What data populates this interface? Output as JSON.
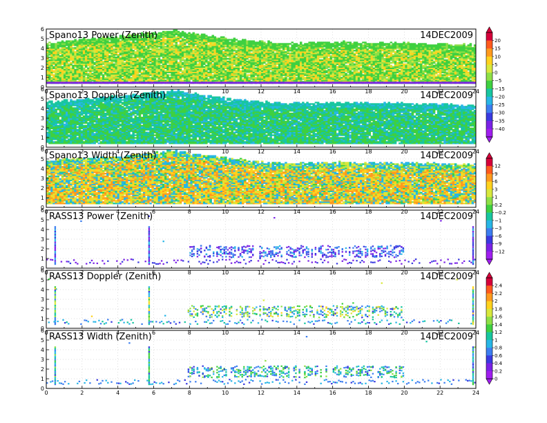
{
  "chart_data": [
    {
      "type": "heatmap",
      "title": "Spano13 Power (Zenith)",
      "date": "14DEC2009",
      "x_ticks": [
        "0",
        "2",
        "4",
        "6",
        "8",
        "10",
        "12",
        "14",
        "16",
        "18",
        "20",
        "22",
        "24"
      ],
      "y_ticks": [
        "0",
        "1",
        "2",
        "3",
        "4",
        "5",
        "6"
      ],
      "xlim": [
        0,
        24
      ],
      "ylim": [
        0,
        6
      ],
      "colorbar": "power",
      "pattern": "dense",
      "value_range": [
        -15,
        10
      ],
      "coverage_top_km": [
        [
          0,
          4.6
        ],
        [
          4,
          5.2
        ],
        [
          7,
          5.8
        ],
        [
          10,
          5.0
        ],
        [
          13,
          4.5
        ],
        [
          16,
          4.6
        ],
        [
          20,
          4.5
        ],
        [
          24,
          4.3
        ]
      ]
    },
    {
      "type": "heatmap",
      "title": "Spano13 Doppler (Zenith)",
      "date": "14DEC2009",
      "x_ticks": [
        "0",
        "2",
        "4",
        "6",
        "8",
        "10",
        "12",
        "14",
        "16",
        "18",
        "20",
        "22",
        "24"
      ],
      "y_ticks": [
        "0",
        "1",
        "2",
        "3",
        "4",
        "5",
        "6"
      ],
      "xlim": [
        0,
        24
      ],
      "ylim": [
        0,
        6
      ],
      "colorbar": "power",
      "pattern": "dense",
      "value_range": [
        -22,
        -8
      ],
      "coverage_top_km": [
        [
          0,
          4.6
        ],
        [
          4,
          5.2
        ],
        [
          7,
          5.8
        ],
        [
          10,
          5.0
        ],
        [
          13,
          4.5
        ],
        [
          16,
          4.6
        ],
        [
          20,
          4.5
        ],
        [
          24,
          4.3
        ]
      ]
    },
    {
      "type": "heatmap",
      "title": "Spano13 Width (Zenith)",
      "date": "14DEC2009",
      "x_ticks": [
        "0",
        "2",
        "4",
        "6",
        "8",
        "10",
        "12",
        "14",
        "16",
        "18",
        "20",
        "22",
        "24"
      ],
      "y_ticks": [
        "0",
        "1",
        "2",
        "3",
        "4",
        "5",
        "6"
      ],
      "xlim": [
        0,
        24
      ],
      "ylim": [
        0,
        6
      ],
      "colorbar": "width",
      "pattern": "dense",
      "value_range": [
        -3,
        9
      ],
      "coverage_top_km": [
        [
          0,
          4.8
        ],
        [
          4,
          5.2
        ],
        [
          7,
          5.8
        ],
        [
          10,
          5.0
        ],
        [
          13,
          4.5
        ],
        [
          16,
          4.6
        ],
        [
          20,
          4.5
        ],
        [
          24,
          4.4
        ]
      ]
    },
    {
      "type": "heatmap",
      "title": "RASS13 Power (Zenith)",
      "date": "14DEC2009",
      "x_ticks": [
        "0",
        "2",
        "4",
        "6",
        "8",
        "10",
        "12",
        "14",
        "16",
        "18",
        "20",
        "22",
        "24"
      ],
      "y_ticks": [
        "0",
        "1",
        "2",
        "3",
        "4",
        "5",
        "6"
      ],
      "xlim": [
        0,
        24
      ],
      "ylim": [
        0,
        6
      ],
      "colorbar": "width",
      "pattern": "sparse",
      "value_range": [
        -12,
        -1
      ]
    },
    {
      "type": "heatmap",
      "title": "RASS13 Doppler (Zenith)",
      "date": "14DEC2009",
      "x_ticks": [
        "0",
        "2",
        "4",
        "6",
        "8",
        "10",
        "12",
        "14",
        "16",
        "18",
        "20",
        "22",
        "24"
      ],
      "y_ticks": [
        "0",
        "1",
        "2",
        "3",
        "4",
        "5",
        "6"
      ],
      "xlim": [
        0,
        24
      ],
      "ylim": [
        0,
        6
      ],
      "colorbar": "rass",
      "pattern": "sparse",
      "value_range": [
        0.4,
        1.8
      ]
    },
    {
      "type": "heatmap",
      "title": "RASS13 Width (Zenith)",
      "date": "14DEC2009",
      "x_ticks": [
        "0",
        "2",
        "4",
        "6",
        "8",
        "10",
        "12",
        "14",
        "16",
        "18",
        "20",
        "22",
        "24"
      ],
      "y_ticks": [
        "0",
        "1",
        "2",
        "3",
        "4",
        "5",
        "6"
      ],
      "xlim": [
        0,
        24
      ],
      "ylim": [
        0,
        6
      ],
      "colorbar": "rass",
      "pattern": "sparse",
      "value_range": [
        0.4,
        1.4
      ]
    }
  ],
  "colorbars": {
    "power": {
      "labels": [
        "20",
        "15",
        "10",
        "5",
        "0",
        "−5",
        "−15",
        "−20",
        "−25",
        "−30",
        "−35",
        "−40"
      ],
      "colors": [
        "#d6003a",
        "#ff5a1e",
        "#ff9a1e",
        "#ffd21e",
        "#d8e83c",
        "#8ee046",
        "#3fd040",
        "#18c6a0",
        "#28b6e6",
        "#3c7ef0",
        "#3a3ae0",
        "#7a22e6",
        "#a01ef0"
      ]
    },
    "width": {
      "labels": [
        "12",
        "9",
        "6",
        "3",
        "1",
        "0.2",
        "−0.2",
        "−1",
        "−3",
        "−6",
        "−9",
        "−12"
      ],
      "colors": [
        "#d6003a",
        "#ff5a1e",
        "#ff9a1e",
        "#ffd21e",
        "#d8e83c",
        "#8ee046",
        "#3fd040",
        "#18c6a0",
        "#28b6e6",
        "#3c7ef0",
        "#3a3ae0",
        "#7a22e6",
        "#a01ef0"
      ]
    },
    "rass": {
      "labels": [
        "2.4",
        "2.2",
        "2",
        "1.8",
        "1.6",
        "1.4",
        "1.2",
        "1",
        "0.8",
        "0.6",
        "0.4",
        "0.2",
        "0"
      ],
      "colors": [
        "#d6003a",
        "#ff5a1e",
        "#ff9a1e",
        "#ffd21e",
        "#d8e83c",
        "#8ee046",
        "#3fd040",
        "#18c6a0",
        "#28b6e6",
        "#3c7ef0",
        "#3a3ae0",
        "#7a22e6",
        "#a01ef0"
      ]
    }
  }
}
